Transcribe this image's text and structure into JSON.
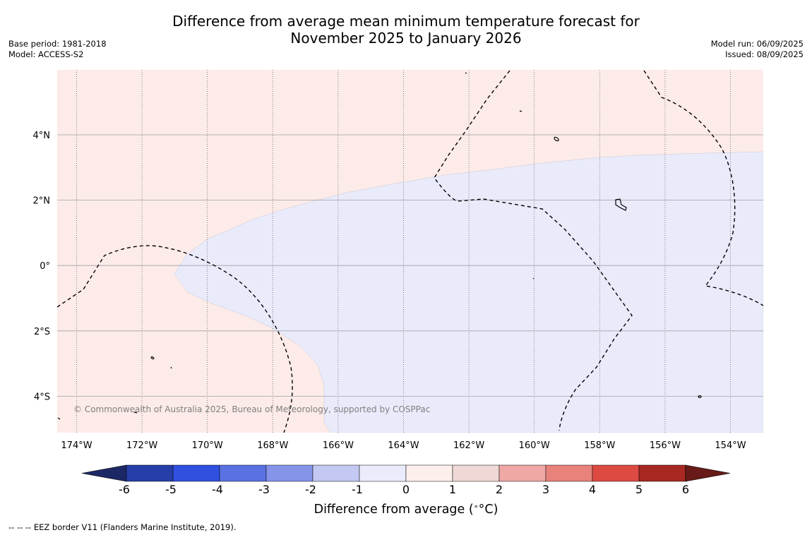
{
  "title_line1": "Difference from average mean minimum temperature forecast for",
  "title_line2": "November 2025 to January 2026",
  "base_period": "Base period: 1981-2018",
  "model": "Model: ACCESS-S2",
  "model_run": "Model run: 06/09/2025",
  "issued": "Issued: 08/09/2025",
  "copyright": "© Commonwealth of Australia 2025, Bureau of Meteorology, supported by COSPPac",
  "footnote": "--  --  -- EEZ border V11 (Flanders Marine Institute, 2019).",
  "map": {
    "lon_labels": [
      "174°W",
      "172°W",
      "170°W",
      "168°W",
      "166°W",
      "164°W",
      "162°W",
      "160°W",
      "158°W",
      "156°W",
      "154°W"
    ],
    "lat_labels": [
      "4°N",
      "2°N",
      "0°",
      "2°S",
      "4°S"
    ]
  },
  "colorbar": {
    "label": "Difference from average (°C)",
    "label_text": "Difference from average (",
    "label_unit": "°C)",
    "ticks": [
      "-6",
      "-5",
      "-4",
      "-3",
      "-2",
      "-1",
      "0",
      "1",
      "2",
      "3",
      "4",
      "5",
      "6"
    ],
    "colors": [
      "#263ea8",
      "#2f50df",
      "#5a71e2",
      "#8593e9",
      "#c4c9f3",
      "#eaecfb",
      "#fcefec",
      "#efd8d5",
      "#f0a8a5",
      "#e8827b",
      "#dd4a42",
      "#a82822"
    ],
    "under_color": "#1c2866",
    "over_color": "#681b18"
  },
  "colors": {
    "warm_fill": "#fcebe8",
    "cool_fill": "#e9ebfb"
  }
}
